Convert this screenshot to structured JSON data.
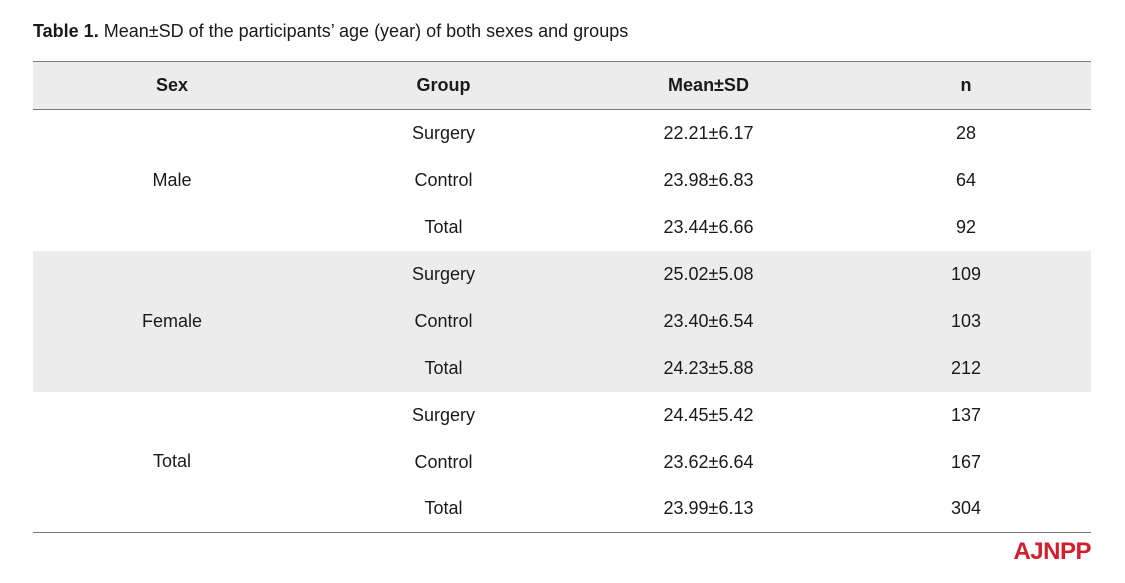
{
  "caption": {
    "label": "Table 1.",
    "text": " Mean±SD of the participants’ age (year) of both sexes and groups"
  },
  "table": {
    "headers": [
      "Sex",
      "Group",
      "Mean±SD",
      "n"
    ],
    "groups": [
      {
        "sex": "Male",
        "rows": [
          {
            "group": "Surgery",
            "mean_sd": "22.21±6.17",
            "n": "28"
          },
          {
            "group": "Control",
            "mean_sd": "23.98±6.83",
            "n": "64"
          },
          {
            "group": "Total",
            "mean_sd": "23.44±6.66",
            "n": "92"
          }
        ]
      },
      {
        "sex": "Female",
        "rows": [
          {
            "group": "Surgery",
            "mean_sd": "25.02±5.08",
            "n": "109"
          },
          {
            "group": "Control",
            "mean_sd": "23.40±6.54",
            "n": "103"
          },
          {
            "group": "Total",
            "mean_sd": "24.23±5.88",
            "n": "212"
          }
        ]
      },
      {
        "sex": "Total",
        "rows": [
          {
            "group": "Surgery",
            "mean_sd": "24.45±5.42",
            "n": "137"
          },
          {
            "group": "Control",
            "mean_sd": "23.62±6.64",
            "n": "167"
          },
          {
            "group": "Total",
            "mean_sd": "23.99±6.13",
            "n": "304"
          }
        ]
      }
    ]
  },
  "logo": {
    "text": "AJNPP",
    "color": "#d0202e"
  },
  "colors": {
    "shade": "#ececec",
    "rule": "#7a7a7a"
  }
}
